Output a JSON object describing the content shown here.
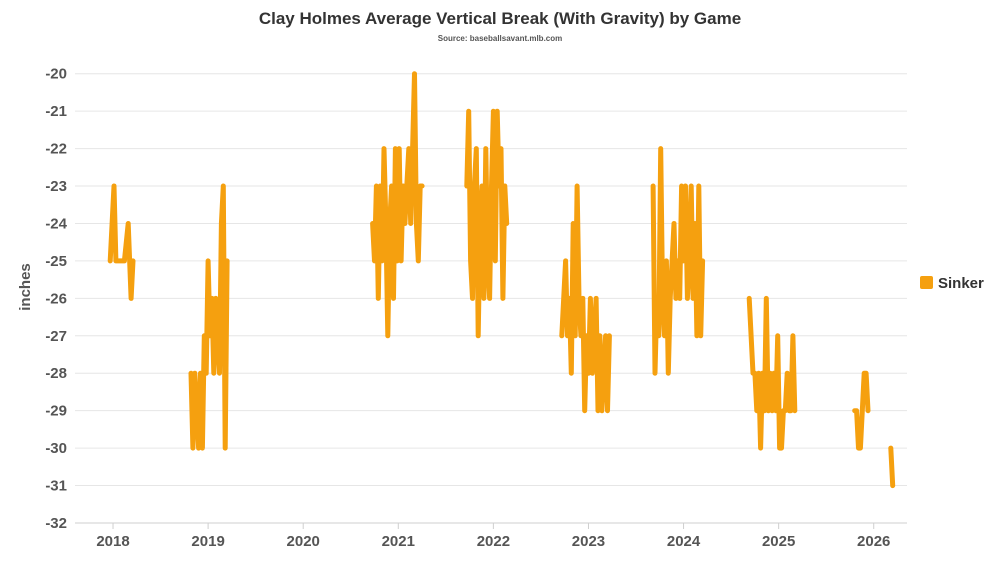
{
  "chart_data": {
    "type": "line",
    "title": "Clay Holmes Average Vertical Break (With Gravity) by Game",
    "subtitle": "Source: baseballsavant.mlb.com",
    "xlabel": "",
    "ylabel": "inches",
    "xlim": [
      2017.6,
      2026.35
    ],
    "ylim": [
      -32,
      -19.5
    ],
    "x_ticks": [
      "2018",
      "2019",
      "2020",
      "2021",
      "2022",
      "2023",
      "2024",
      "2025",
      "2026"
    ],
    "y_ticks": [
      "-20",
      "-21",
      "-22",
      "-23",
      "-24",
      "-25",
      "-26",
      "-27",
      "-28",
      "-29",
      "-30",
      "-31",
      "-32"
    ],
    "grid": true,
    "legend_position": "right",
    "series": [
      {
        "name": "Sinker",
        "color": "#F5A00F",
        "segments": [
          [
            [
              2017.97,
              -25
            ],
            [
              2017.99,
              -24
            ],
            [
              2018.01,
              -23
            ],
            [
              2018.03,
              -25
            ],
            [
              2018.06,
              -25
            ],
            [
              2018.09,
              -25
            ],
            [
              2018.12,
              -25
            ],
            [
              2018.14,
              -24.5
            ],
            [
              2018.16,
              -24
            ],
            [
              2018.19,
              -26
            ],
            [
              2018.21,
              -25
            ]
          ],
          [
            [
              2018.82,
              -28
            ],
            [
              2018.84,
              -30
            ],
            [
              2018.86,
              -28
            ],
            [
              2018.88,
              -29
            ],
            [
              2018.9,
              -30
            ],
            [
              2018.92,
              -28
            ],
            [
              2018.94,
              -30
            ],
            [
              2018.96,
              -27
            ],
            [
              2018.98,
              -28
            ],
            [
              2019.0,
              -25
            ],
            [
              2019.02,
              -27
            ],
            [
              2019.04,
              -26
            ],
            [
              2019.06,
              -28
            ],
            [
              2019.08,
              -26
            ],
            [
              2019.1,
              -27
            ],
            [
              2019.12,
              -28
            ],
            [
              2019.14,
              -24
            ],
            [
              2019.16,
              -23
            ],
            [
              2019.18,
              -30
            ],
            [
              2019.2,
              -25
            ]
          ],
          [
            [
              2020.73,
              -24
            ],
            [
              2020.75,
              -25
            ],
            [
              2020.77,
              -23
            ],
            [
              2020.79,
              -26
            ],
            [
              2020.81,
              -23
            ],
            [
              2020.83,
              -25
            ],
            [
              2020.85,
              -22
            ],
            [
              2020.87,
              -24
            ],
            [
              2020.89,
              -27
            ],
            [
              2020.91,
              -24
            ],
            [
              2020.93,
              -23
            ],
            [
              2020.95,
              -26
            ],
            [
              2020.97,
              -22
            ],
            [
              2020.99,
              -25
            ],
            [
              2021.01,
              -22
            ],
            [
              2021.03,
              -25
            ],
            [
              2021.05,
              -23
            ],
            [
              2021.07,
              -24
            ],
            [
              2021.09,
              -23
            ],
            [
              2021.11,
              -22
            ],
            [
              2021.13,
              -24
            ],
            [
              2021.15,
              -22
            ],
            [
              2021.17,
              -20
            ],
            [
              2021.19,
              -24
            ],
            [
              2021.21,
              -25
            ],
            [
              2021.23,
              -23
            ],
            [
              2021.25,
              -23
            ]
          ],
          [
            [
              2021.72,
              -23
            ],
            [
              2021.74,
              -21
            ],
            [
              2021.76,
              -25
            ],
            [
              2021.78,
              -26
            ],
            [
              2021.8,
              -23
            ],
            [
              2021.82,
              -22
            ],
            [
              2021.84,
              -27
            ],
            [
              2021.86,
              -24
            ],
            [
              2021.88,
              -23
            ],
            [
              2021.9,
              -26
            ],
            [
              2021.92,
              -22
            ],
            [
              2021.94,
              -25
            ],
            [
              2021.96,
              -26
            ],
            [
              2021.98,
              -23
            ],
            [
              2022.0,
              -21
            ],
            [
              2022.02,
              -25
            ],
            [
              2022.04,
              -21
            ],
            [
              2022.06,
              -23
            ],
            [
              2022.08,
              -22
            ],
            [
              2022.1,
              -26
            ],
            [
              2022.12,
              -23
            ],
            [
              2022.14,
              -24
            ]
          ],
          [
            [
              2022.72,
              -27
            ],
            [
              2022.74,
              -26
            ],
            [
              2022.76,
              -25
            ],
            [
              2022.78,
              -27
            ],
            [
              2022.8,
              -26
            ],
            [
              2022.82,
              -28
            ],
            [
              2022.84,
              -24
            ],
            [
              2022.86,
              -27
            ],
            [
              2022.88,
              -23
            ],
            [
              2022.9,
              -26
            ],
            [
              2022.92,
              -27
            ],
            [
              2022.94,
              -26
            ],
            [
              2022.96,
              -29
            ],
            [
              2022.98,
              -27
            ],
            [
              2023.0,
              -28
            ],
            [
              2023.02,
              -26
            ],
            [
              2023.04,
              -28
            ],
            [
              2023.06,
              -27
            ],
            [
              2023.08,
              -26
            ],
            [
              2023.1,
              -29
            ],
            [
              2023.12,
              -27
            ],
            [
              2023.14,
              -29
            ],
            [
              2023.16,
              -28
            ],
            [
              2023.18,
              -27
            ],
            [
              2023.2,
              -29
            ],
            [
              2023.22,
              -27
            ]
          ],
          [
            [
              2023.68,
              -23
            ],
            [
              2023.7,
              -28
            ],
            [
              2023.72,
              -26
            ],
            [
              2023.74,
              -27
            ],
            [
              2023.76,
              -22
            ],
            [
              2023.78,
              -26
            ],
            [
              2023.8,
              -27
            ],
            [
              2023.82,
              -25
            ],
            [
              2023.84,
              -28
            ],
            [
              2023.86,
              -26
            ],
            [
              2023.88,
              -25
            ],
            [
              2023.9,
              -24
            ],
            [
              2023.92,
              -26
            ],
            [
              2023.94,
              -25
            ],
            [
              2023.96,
              -26
            ],
            [
              2023.98,
              -23
            ],
            [
              2024.0,
              -25
            ],
            [
              2024.02,
              -23
            ],
            [
              2024.04,
              -26
            ],
            [
              2024.06,
              -25
            ],
            [
              2024.08,
              -23
            ],
            [
              2024.1,
              -26
            ],
            [
              2024.12,
              -24
            ],
            [
              2024.14,
              -27
            ],
            [
              2024.16,
              -23
            ],
            [
              2024.18,
              -27
            ],
            [
              2024.2,
              -25
            ]
          ],
          [
            [
              2024.69,
              -26
            ],
            [
              2024.71,
              -27
            ],
            [
              2024.73,
              -28
            ],
            [
              2024.75,
              -28
            ],
            [
              2024.77,
              -29
            ],
            [
              2024.79,
              -28
            ],
            [
              2024.81,
              -30
            ],
            [
              2024.83,
              -28
            ],
            [
              2024.85,
              -29
            ],
            [
              2024.87,
              -26
            ],
            [
              2024.89,
              -29
            ],
            [
              2024.91,
              -28
            ],
            [
              2024.93,
              -29
            ],
            [
              2024.95,
              -28
            ],
            [
              2024.97,
              -29
            ],
            [
              2024.99,
              -27
            ],
            [
              2025.01,
              -30
            ],
            [
              2025.03,
              -30
            ],
            [
              2025.05,
              -29
            ],
            [
              2025.07,
              -29
            ],
            [
              2025.09,
              -28
            ],
            [
              2025.11,
              -29
            ],
            [
              2025.13,
              -29
            ],
            [
              2025.15,
              -27
            ],
            [
              2025.17,
              -29
            ]
          ],
          [
            [
              2025.8,
              -29
            ],
            [
              2025.82,
              -29
            ],
            [
              2025.84,
              -30
            ],
            [
              2025.86,
              -30
            ],
            [
              2025.88,
              -29
            ],
            [
              2025.9,
              -28
            ],
            [
              2025.92,
              -28
            ],
            [
              2025.94,
              -29
            ]
          ],
          [
            [
              2026.18,
              -30
            ],
            [
              2026.2,
              -31
            ]
          ]
        ]
      }
    ]
  }
}
